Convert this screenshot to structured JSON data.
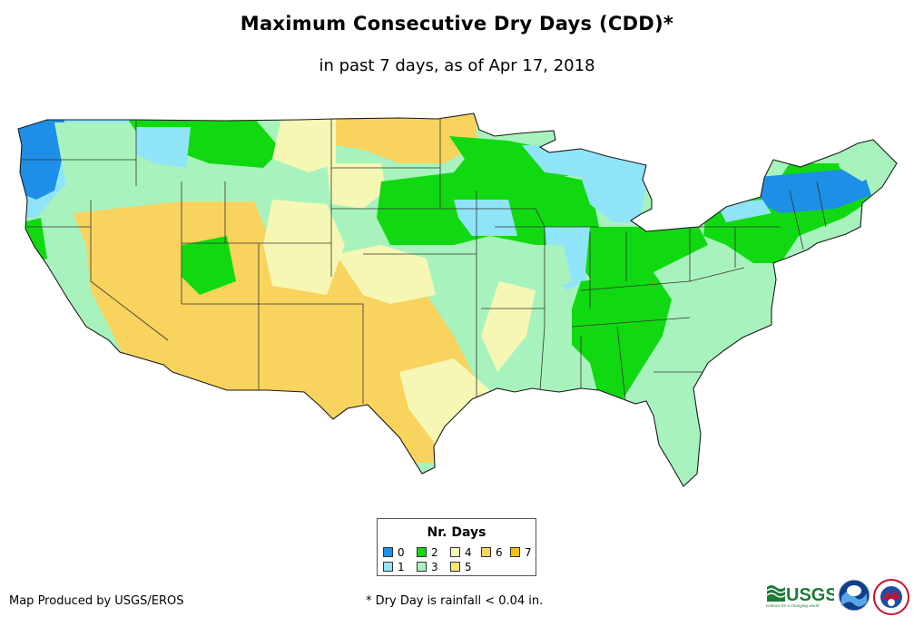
{
  "title": "Maximum Consecutive Dry Days (CDD)*",
  "subtitle": "in past 7 days, as of Apr 17, 2018",
  "legend": {
    "title": "Nr. Days",
    "items": [
      {
        "label": "0",
        "color": "#1e8fe6"
      },
      {
        "label": "1",
        "color": "#8fe4f7"
      },
      {
        "label": "2",
        "color": "#11d911"
      },
      {
        "label": "3",
        "color": "#a8f3bd"
      },
      {
        "label": "4",
        "color": "#f7f7b5"
      },
      {
        "label": "5",
        "color": "#f9e776"
      },
      {
        "label": "6",
        "color": "#f8d35e"
      },
      {
        "label": "7",
        "color": "#f4c20a"
      }
    ]
  },
  "footer": {
    "credit": "Map Produced by USGS/EROS",
    "footnote": "* Dry Day is rainfall < 0.04 in.",
    "usgs_wordmark": "USGS",
    "usgs_tagline": "science for a changing world"
  },
  "colors": {
    "outline": "#1a1a1a",
    "background": "#ffffff"
  }
}
